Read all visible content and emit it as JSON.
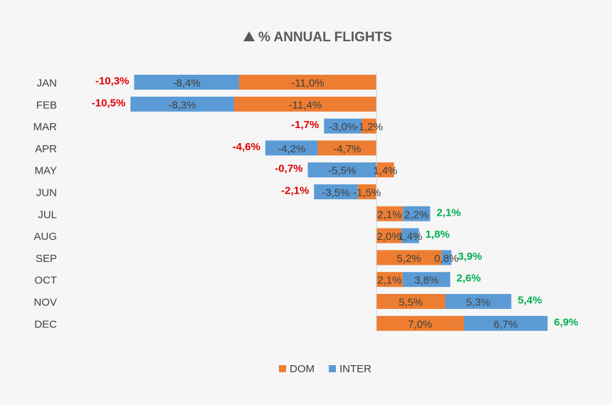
{
  "chart_data": {
    "type": "bar",
    "orientation": "horizontal",
    "stacked": true,
    "title": "% ANNUAL FLIGHTS",
    "title_icon": "up-triangle-icon",
    "categories": [
      "JAN",
      "FEB",
      "MAR",
      "APR",
      "MAY",
      "JUN",
      "JUL",
      "AUG",
      "SEP",
      "OCT",
      "NOV",
      "DEC"
    ],
    "series": [
      {
        "name": "DOM",
        "color": "#ed7d31",
        "values": [
          -11.0,
          -11.4,
          -1.2,
          -4.7,
          1.4,
          -1.5,
          2.1,
          2.0,
          5.2,
          2.1,
          5.5,
          7.0
        ],
        "labels": [
          "-11,0%",
          "-11,4%",
          "-1,2%",
          "-4,7%",
          "1,4%",
          "-1,5%",
          "2,1%",
          "2,0%",
          "5,2%",
          "2,1%",
          "5,5%",
          "7,0%"
        ]
      },
      {
        "name": "INTER",
        "color": "#5b9bd5",
        "values": [
          -8.4,
          -8.3,
          -3.0,
          -4.2,
          -5.5,
          -3.5,
          2.2,
          1.4,
          0.8,
          3.8,
          5.3,
          6.7
        ],
        "labels": [
          "-8,4%",
          "-8,3%",
          "-3,0%",
          "-4,2%",
          "-5,5%",
          "-3,5%",
          "2,2%",
          "1,4%",
          "0,8%",
          "3,8%",
          "5,3%",
          "6,7%"
        ]
      }
    ],
    "totals": {
      "values": [
        -10.3,
        -10.5,
        -1.7,
        -4.6,
        -0.7,
        -2.1,
        2.1,
        1.8,
        3.9,
        2.6,
        5.4,
        6.9
      ],
      "labels": [
        "-10,3%",
        "-10,5%",
        "-1,7%",
        "-4,6%",
        "-0,7%",
        "-2,1%",
        "2,1%",
        "1,8%",
        "3,9%",
        "2,6%",
        "5,4%",
        "6,9%"
      ],
      "positive_color": "#00b050",
      "negative_color": "#e00000"
    },
    "legend": {
      "position": "bottom",
      "items": [
        "DOM",
        "INTER"
      ]
    },
    "grid": false
  }
}
